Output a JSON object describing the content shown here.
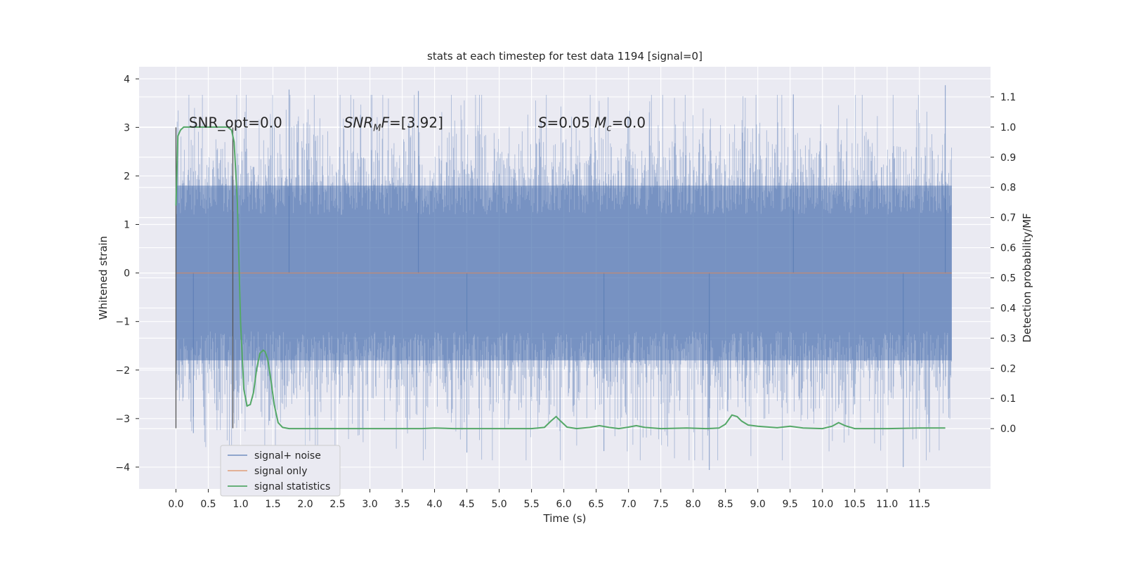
{
  "chart_data": {
    "type": "line",
    "title": "stats at each timestep for test data 1194 [signal=0]",
    "xlabel": "Time (s)",
    "ylabel": "Whitened strain",
    "y2label": "Detection probability/MF",
    "xlim": [
      -0.57,
      12.6
    ],
    "ylim": [
      -4.45,
      4.25
    ],
    "y2lim": [
      -0.2,
      1.2
    ],
    "x_ticks": [
      0.0,
      0.5,
      1.0,
      1.5,
      2.0,
      2.5,
      3.0,
      3.5,
      4.0,
      4.5,
      5.0,
      5.5,
      6.0,
      6.5,
      7.0,
      7.5,
      8.0,
      8.5,
      9.0,
      9.5,
      10.0,
      10.5,
      11.0,
      11.5
    ],
    "x_tick_labels": [
      "0.0",
      "0.5",
      "1.0",
      "1.5",
      "2.0",
      "2.5",
      "3.0",
      "3.5",
      "4.0",
      "4.5",
      "5.0",
      "5.5",
      "6.0",
      "6.5",
      "7.0",
      "7.5",
      "8.0",
      "8.5",
      "9.0",
      "9.5",
      "10.0",
      "10.5",
      "11.0",
      "11.5"
    ],
    "y_ticks": [
      -4,
      -3,
      -2,
      -1,
      0,
      1,
      2,
      3,
      4
    ],
    "y_tick_labels": [
      "−4",
      "−3",
      "−2",
      "−1",
      "0",
      "1",
      "2",
      "3",
      "4"
    ],
    "y2_ticks": [
      0.0,
      0.1,
      0.2,
      0.3,
      0.4,
      0.5,
      0.6,
      0.7,
      0.8,
      0.9,
      1.0,
      1.1
    ],
    "y2_tick_labels": [
      "0.0",
      "0.1",
      "0.2",
      "0.3",
      "0.4",
      "0.5",
      "0.6",
      "0.7",
      "0.8",
      "0.9",
      "1.0",
      "1.1"
    ],
    "grid": true,
    "legend_position": "lower-left",
    "annotations": [
      {
        "text": "SNR_opt=0.0",
        "x": 0.2,
        "y": 3.1
      },
      {
        "text": "SNR_MF=[3.92]",
        "x": 2.6,
        "y": 3.1
      },
      {
        "text": "S=0.05   M_c=0.0",
        "x": 5.6,
        "y": 3.1
      }
    ],
    "vertical_lines": [
      {
        "x": 0.0,
        "y": [
          -3.2,
          3.0
        ]
      },
      {
        "x": 0.88,
        "y": [
          -3.2,
          3.0
        ]
      }
    ],
    "series": [
      {
        "name": "signal+ noise",
        "color": "#4c72b0",
        "kind": "noise",
        "x_range": [
          0.0,
          12.0
        ],
        "typical_range": [
          -1.8,
          1.8
        ],
        "y_extremes": {
          "max": 3.87,
          "min": -4.06
        }
      },
      {
        "name": "signal only",
        "color": "#dd8452",
        "kind": "line",
        "x": [
          0.0,
          12.0
        ],
        "y": [
          0.0,
          0.0
        ]
      },
      {
        "name": "signal statistics",
        "color": "#55a868",
        "axis": "y2",
        "kind": "line",
        "x": [
          0.0,
          0.03,
          0.07,
          0.12,
          0.2,
          0.3,
          0.5,
          0.7,
          0.8,
          0.86,
          0.9,
          0.95,
          1.0,
          1.05,
          1.1,
          1.15,
          1.2,
          1.25,
          1.3,
          1.35,
          1.38,
          1.42,
          1.47,
          1.52,
          1.58,
          1.65,
          1.75,
          1.85,
          2.0,
          3.0,
          3.8,
          4.0,
          4.3,
          5.5,
          5.7,
          5.8,
          5.88,
          5.95,
          6.05,
          6.2,
          6.4,
          6.55,
          6.7,
          6.85,
          7.0,
          7.12,
          7.25,
          7.5,
          7.9,
          8.2,
          8.4,
          8.5,
          8.6,
          8.68,
          8.75,
          8.85,
          9.0,
          9.3,
          9.5,
          9.7,
          10.0,
          10.15,
          10.25,
          10.35,
          10.5,
          11.0,
          11.5,
          11.9
        ],
        "y": [
          0.74,
          0.97,
          0.99,
          1.0,
          1.0,
          1.0,
          1.0,
          1.0,
          1.0,
          0.99,
          0.95,
          0.75,
          0.35,
          0.13,
          0.075,
          0.08,
          0.12,
          0.2,
          0.25,
          0.26,
          0.255,
          0.23,
          0.16,
          0.08,
          0.02,
          0.004,
          0.0,
          0.0,
          0.0,
          0.0,
          0.0,
          0.002,
          0.0,
          0.0,
          0.004,
          0.025,
          0.04,
          0.025,
          0.005,
          0.0,
          0.004,
          0.01,
          0.004,
          0.0,
          0.005,
          0.01,
          0.004,
          0.0,
          0.002,
          0.0,
          0.002,
          0.015,
          0.045,
          0.04,
          0.025,
          0.012,
          0.008,
          0.003,
          0.008,
          0.002,
          0.0,
          0.008,
          0.02,
          0.01,
          0.0,
          0.0,
          0.002,
          0.002
        ]
      }
    ]
  }
}
